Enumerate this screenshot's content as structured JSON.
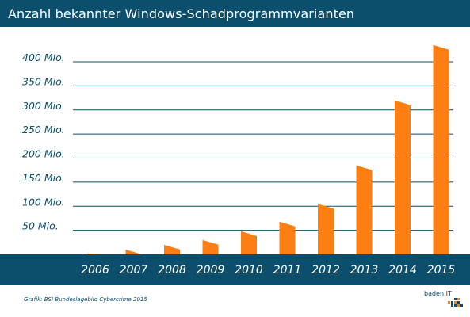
{
  "title": "Anzahl bekannter Windows-Schadprogrammvarianten",
  "source": "Grafik: BSI Bundeslagebild Cybercrime 2015",
  "logo": {
    "text": "baden IT"
  },
  "colors": {
    "header": "#0b4f6c",
    "bar": "#fd7f14",
    "grid": "#0b4f6c",
    "label": "#0b4f6c",
    "text_light": "#ffffff"
  },
  "chart_data": {
    "type": "bar",
    "title": "Anzahl bekannter Windows-Schadprogrammvarianten",
    "categories": [
      "2006",
      "2007",
      "2008",
      "2009",
      "2010",
      "2011",
      "2012",
      "2013",
      "2014",
      "2015"
    ],
    "values": [
      2,
      10,
      20,
      30,
      48,
      68,
      105,
      185,
      320,
      435
    ],
    "value_unit": "Mio.",
    "yticks": [
      {
        "value": 50,
        "label": "50 Mio."
      },
      {
        "value": 100,
        "label": "100 Mio."
      },
      {
        "value": 150,
        "label": "150 Mio."
      },
      {
        "value": 200,
        "label": "200 Mio."
      },
      {
        "value": 250,
        "label": "250 Mio."
      },
      {
        "value": 300,
        "label": "300 Mio."
      },
      {
        "value": 350,
        "label": "350 Mio."
      },
      {
        "value": 400,
        "label": "400 Mio."
      }
    ],
    "ylim": [
      0,
      450
    ],
    "grid": true,
    "legend": "none"
  }
}
